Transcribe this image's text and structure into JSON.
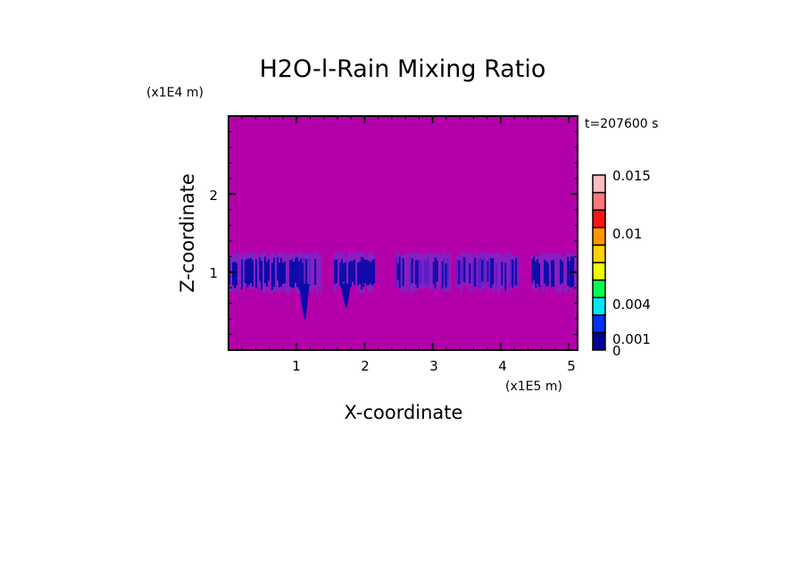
{
  "chart_data": {
    "type": "heatmap",
    "title": "H2O-l-Rain Mixing Ratio",
    "time_label": "t=207600 s",
    "xlabel": "X-coordinate",
    "ylabel": "Z-coordinate",
    "x_unit": "(x1E5 m)",
    "y_unit": "(x1E4 m)",
    "xlim": [
      0,
      5.13
    ],
    "ylim": [
      0,
      3
    ],
    "x_ticks": [
      "1",
      "2",
      "3",
      "4",
      "5"
    ],
    "y_ticks": [
      "1",
      "2"
    ],
    "background_value": "below 0",
    "background_color": "#b400aa",
    "colorbar": {
      "labels": [
        "0.015",
        "0.01",
        "0.004",
        "0.001",
        "0"
      ],
      "colors": [
        "#000096",
        "#0032ff",
        "#00e6ff",
        "#00ff50",
        "#f0ff00",
        "#ffd200",
        "#ff9600",
        "#ff1414",
        "#ff7878",
        "#ffbebe"
      ]
    },
    "rain_regions": [
      {
        "x": [
          0.0,
          1.2
        ],
        "z": [
          0.85,
          1.25
        ],
        "intensity": "0-0.001"
      },
      {
        "x": [
          1.0,
          1.35
        ],
        "z": [
          0.4,
          1.2
        ],
        "intensity": "0-0.001"
      },
      {
        "x": [
          1.55,
          2.15
        ],
        "z": [
          0.55,
          1.2
        ],
        "intensity": "0-0.001"
      },
      {
        "x": [
          2.45,
          3.25
        ],
        "z": [
          0.8,
          1.2
        ],
        "intensity": "0-0.001"
      },
      {
        "x": [
          3.35,
          4.25
        ],
        "z": [
          0.85,
          1.25
        ],
        "intensity": "0-0.001"
      },
      {
        "x": [
          4.45,
          5.13
        ],
        "z": [
          0.75,
          1.25
        ],
        "intensity": "0-0.001"
      }
    ]
  }
}
